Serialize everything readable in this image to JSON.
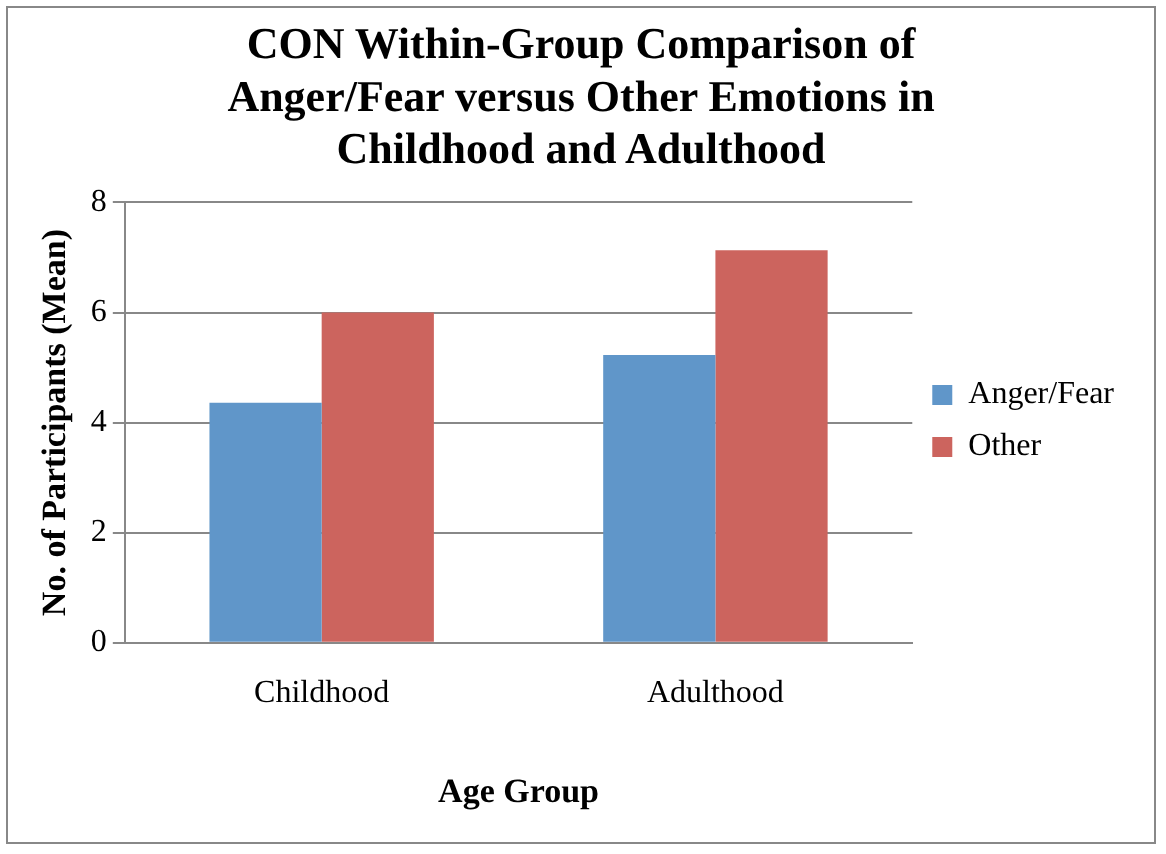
{
  "chart_data": {
    "type": "bar",
    "title": "CON Within-Group Comparison of Anger/Fear versus Other Emotions in Childhood and Adulthood",
    "xlabel": "Age Group",
    "ylabel": "No. of Participants (Mean)",
    "categories": [
      "Childhood",
      "Adulthood"
    ],
    "series": [
      {
        "name": "Anger/Fear",
        "color": "#6096c9",
        "values": [
          4.36,
          5.23
        ]
      },
      {
        "name": "Other",
        "color": "#cc645e",
        "values": [
          6.0,
          7.13
        ]
      }
    ],
    "ylim": [
      0,
      8
    ],
    "yticks": [
      0,
      2,
      4,
      6,
      8
    ],
    "grid": "y",
    "legend": "right"
  }
}
